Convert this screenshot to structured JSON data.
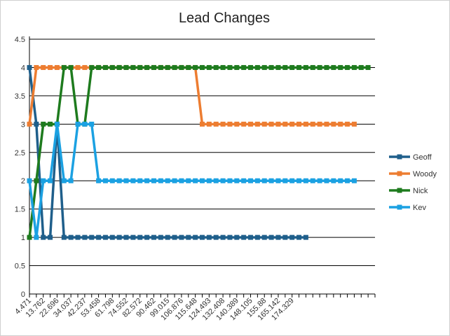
{
  "chart_data": {
    "type": "line",
    "title": "Lead Changes",
    "xlabel": "",
    "ylabel": "",
    "ylim": [
      0,
      4.5
    ],
    "yticks": [
      "0",
      "0.5",
      "1",
      "1.5",
      "2",
      "2.5",
      "3",
      "3.5",
      "4",
      "4.5"
    ],
    "grid": true,
    "legend_position": "right",
    "x_tick_labels": [
      "4.471",
      "13.762",
      "22.696",
      "34.037",
      "42.237",
      "53.458",
      "61.798",
      "74.552",
      "82.572",
      "90.462",
      "99.015",
      "106.876",
      "115.648",
      "124.493",
      "132.408",
      "140.389",
      "148.105",
      "155.88",
      "165.142",
      "174.329"
    ],
    "series": [
      {
        "name": "Geoff",
        "color": "#1f5f8b",
        "values": [
          4,
          3,
          1,
          1,
          3,
          1,
          1,
          1,
          1,
          1,
          1,
          1,
          1,
          1,
          1,
          1,
          1,
          1,
          1,
          1,
          1,
          1,
          1,
          1,
          1,
          1,
          1,
          1,
          1,
          1,
          1,
          1,
          1,
          1,
          1,
          1,
          1,
          1,
          1,
          1,
          1
        ]
      },
      {
        "name": "Woody",
        "color": "#ed7d31",
        "values": [
          3,
          4,
          4,
          4,
          4,
          4,
          4,
          4,
          4,
          4,
          4,
          4,
          4,
          4,
          4,
          4,
          4,
          4,
          4,
          4,
          4,
          4,
          4,
          4,
          4,
          3,
          3,
          3,
          3,
          3,
          3,
          3,
          3,
          3,
          3,
          3,
          3,
          3,
          3,
          3,
          3,
          3,
          3,
          3,
          3,
          3,
          3,
          3
        ]
      },
      {
        "name": "Nick",
        "color": "#1e7b1e",
        "values": [
          1,
          2,
          3,
          3,
          3,
          4,
          4,
          3,
          3,
          4,
          4,
          4,
          4,
          4,
          4,
          4,
          4,
          4,
          4,
          4,
          4,
          4,
          4,
          4,
          4,
          4,
          4,
          4,
          4,
          4,
          4,
          4,
          4,
          4,
          4,
          4,
          4,
          4,
          4,
          4,
          4,
          4,
          4,
          4,
          4,
          4,
          4,
          4,
          4,
          4
        ]
      },
      {
        "name": "Kev",
        "color": "#1ba1e2",
        "values": [
          2,
          1,
          2,
          2,
          3,
          2,
          2,
          3,
          3,
          3,
          2,
          2,
          2,
          2,
          2,
          2,
          2,
          2,
          2,
          2,
          2,
          2,
          2,
          2,
          2,
          2,
          2,
          2,
          2,
          2,
          2,
          2,
          2,
          2,
          2,
          2,
          2,
          2,
          2,
          2,
          2,
          2,
          2,
          2,
          2,
          2,
          2,
          2
        ]
      }
    ]
  }
}
